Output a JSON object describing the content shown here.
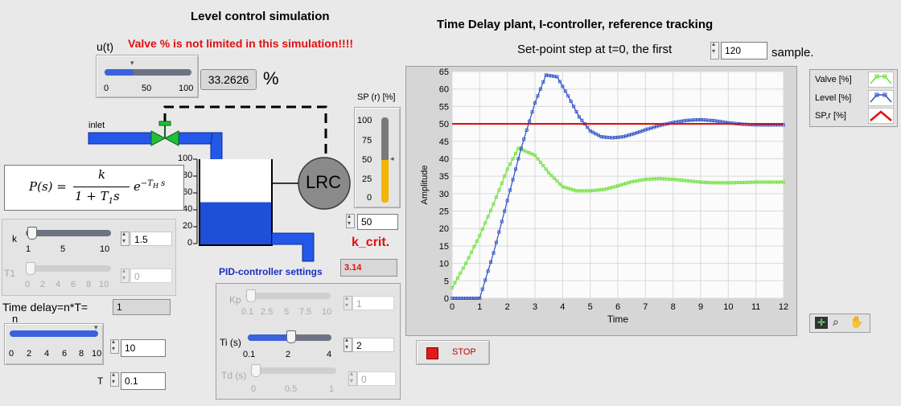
{
  "left": {
    "title": "Level control simulation",
    "ut_label": "u(t)",
    "warning": "Valve % is not limited in this simulation!!!!",
    "ut_value": "33.2626",
    "ut_unit": "%",
    "ut_slider_ticks": [
      "0",
      "50",
      "100"
    ],
    "ut_fraction": 0.333,
    "inlet_label": "inlet",
    "lrc_label": "LRC",
    "tank_ticks": [
      "100",
      "80",
      "60",
      "40",
      "20",
      "0"
    ],
    "tank_level_pct": 50,
    "formula": {
      "p": "P(s) =",
      "num": "k",
      "den": "1 + T",
      "den_sub": "1",
      "den_s": "s",
      "exp": "e",
      "exp_sup": "−T",
      "exp_sub": "H",
      "exp_s": "s"
    },
    "k_label": "k",
    "k_ticks": [
      "1",
      "5",
      "10"
    ],
    "k_value": "1.5",
    "t1_label": "T1",
    "t1_ticks": [
      "0",
      "2",
      "4",
      "6",
      "8",
      "10"
    ],
    "t1_value": "0",
    "delay_label": "Time delay=n*T=",
    "delay_value": "1",
    "n_label": "n",
    "n_ticks": [
      "0",
      "2",
      "4",
      "6",
      "8",
      "10"
    ],
    "n_value": "10",
    "t_label": "T",
    "t_value": "0.1",
    "sp_label": "SP (r) [%]",
    "sp_ticks": [
      "100",
      "75",
      "50",
      "25",
      "0"
    ],
    "sp_value": "50",
    "kcrit_label": "k_crit.",
    "kcrit_value": "3.14",
    "pid_title": "PID-controller settings",
    "kp_label": "Kp",
    "kp_ticks": [
      "0.1",
      "2.5",
      "5",
      "7.5",
      "10"
    ],
    "kp_value": "1",
    "ti_label": "Ti (s)",
    "ti_ticks": [
      "0.1",
      "2",
      "4"
    ],
    "ti_value": "2",
    "td_label": "Td (s)",
    "td_ticks": [
      "0",
      "0.5",
      "1"
    ],
    "td_value": "0"
  },
  "right": {
    "title": "Time Delay plant, I-controller, reference tracking",
    "setpoint_prefix": "Set-point step at t=0, the first",
    "setpoint_value": "120",
    "setpoint_suffix": "sample.",
    "stop_label": "STOP"
  },
  "colors": {
    "valve": "#6fe03a",
    "level": "#2b4fc7",
    "sp": "#e01010",
    "fill": "#1f4fd6",
    "gauge": "#f4b400"
  },
  "icons": [
    "crosshair-icon",
    "zoom-icon",
    "hand-icon"
  ],
  "chart_data": {
    "type": "line",
    "xlabel": "Time",
    "ylabel": "Amplitude",
    "xlim": [
      0,
      12
    ],
    "ylim": [
      0,
      65
    ],
    "xticks": [
      0,
      1,
      2,
      3,
      4,
      5,
      6,
      7,
      8,
      9,
      10,
      11,
      12
    ],
    "yticks": [
      0,
      5,
      10,
      15,
      20,
      25,
      30,
      35,
      40,
      45,
      50,
      55,
      60,
      65
    ],
    "grid": true,
    "legend": "top-right (outside)",
    "series": [
      {
        "name": "Valve [%]",
        "color": "#6fe03a",
        "x": [
          0,
          0.5,
          1,
          1.5,
          2,
          2.4,
          3,
          3.5,
          4,
          4.5,
          5,
          5.5,
          6,
          6.5,
          7,
          7.5,
          8,
          8.5,
          9,
          9.5,
          10,
          10.5,
          11,
          11.5,
          12
        ],
        "y": [
          3,
          10,
          18,
          27,
          37,
          43,
          41,
          36,
          32,
          30.8,
          30.8,
          31.2,
          32.2,
          33.4,
          34.1,
          34.3,
          34.1,
          33.7,
          33.3,
          33.1,
          33.1,
          33.2,
          33.3,
          33.3,
          33.3
        ]
      },
      {
        "name": "Level [%]",
        "color": "#2b4fc7",
        "x": [
          0,
          1,
          1.5,
          2,
          2.5,
          3,
          3.4,
          3.8,
          4.2,
          4.6,
          5,
          5.4,
          5.8,
          6.2,
          6.6,
          7,
          7.5,
          8,
          8.5,
          9,
          9.5,
          10,
          10.5,
          11,
          11.5,
          12
        ],
        "y": [
          0,
          0,
          13,
          28,
          43,
          56,
          64,
          63.5,
          58,
          52,
          48,
          46.3,
          46,
          46.3,
          47.2,
          48.3,
          49.5,
          50.4,
          51,
          51.2,
          50.9,
          50.3,
          49.9,
          49.7,
          49.7,
          49.7
        ]
      },
      {
        "name": "SP,r [%]",
        "color": "#e01010",
        "x": [
          0,
          12
        ],
        "y": [
          50,
          50
        ]
      }
    ]
  }
}
